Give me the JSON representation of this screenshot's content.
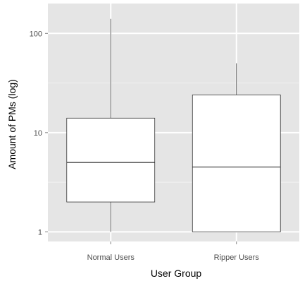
{
  "chart_data": {
    "type": "boxplot",
    "title": "",
    "xlabel": "User Group",
    "ylabel": "Amount of PMs (log)",
    "y_scale": "log10",
    "ylim": [
      0.8,
      200
    ],
    "y_ticks": [
      1,
      10,
      100
    ],
    "y_tick_labels": [
      "1",
      "10",
      "100"
    ],
    "grid": true,
    "legend": "none",
    "categories": [
      "Normal Users",
      "Ripper Users"
    ],
    "boxes": [
      {
        "category": "Normal Users",
        "whisker_low": 1,
        "q1": 2,
        "median": 5,
        "q3": 14,
        "whisker_high": 140
      },
      {
        "category": "Ripper Users",
        "whisker_low": 1,
        "q1": 1,
        "median": 4.5,
        "q3": 24,
        "whisker_high": 50
      }
    ],
    "colors": {
      "panel_background": "#e5e5e5",
      "grid_major": "#ffffff",
      "grid_minor": "#f2f2f2",
      "box_fill": "#ffffff",
      "box_stroke": "#333333",
      "tick_mark": "#7f7f7f",
      "tick_label": "#4d4d4d"
    }
  }
}
